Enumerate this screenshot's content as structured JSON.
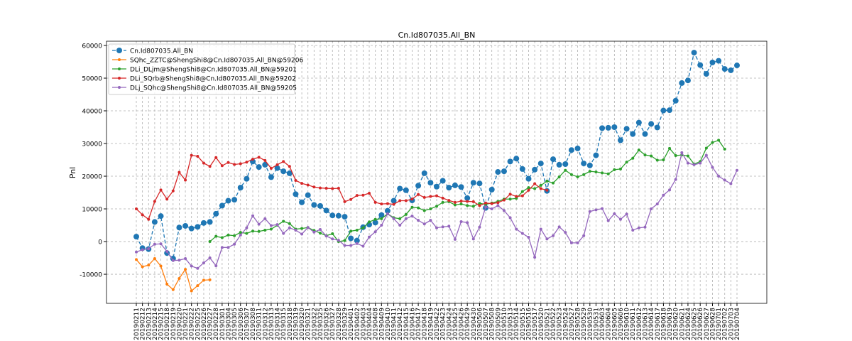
{
  "chart_data": {
    "type": "line",
    "title": "Cn.Id807035.All_BN",
    "y_label": "Pnl",
    "categories": [
      "20190211",
      "20190212",
      "20190213",
      "20190214",
      "20190215",
      "20190218",
      "20190219",
      "20190220",
      "20190221",
      "20190222",
      "20190225",
      "20190226",
      "20190227",
      "20190228",
      "20190301",
      "20190304",
      "20190305",
      "20190306",
      "20190307",
      "20190308",
      "20190311",
      "20190312",
      "20190313",
      "20190314",
      "20190315",
      "20190318",
      "20190319",
      "20190320",
      "20190321",
      "20190322",
      "20190325",
      "20190326",
      "20190327",
      "20190328",
      "20190329",
      "20190401",
      "20190402",
      "20190403",
      "20190404",
      "20190408",
      "20190409",
      "20190410",
      "20190411",
      "20190412",
      "20190415",
      "20190416",
      "20190417",
      "20190418",
      "20190419",
      "20190422",
      "20190423",
      "20190424",
      "20190425",
      "20190426",
      "20190429",
      "20190430",
      "20190506",
      "20190507",
      "20190508",
      "20190509",
      "20190510",
      "20190513",
      "20190514",
      "20190515",
      "20190516",
      "20190517",
      "20190520",
      "20190521",
      "20190522",
      "20190523",
      "20190524",
      "20190527",
      "20190528",
      "20190529",
      "20190530",
      "20190531",
      "20190603",
      "20190604",
      "20190605",
      "20190606",
      "20190610",
      "20190611",
      "20190612",
      "20190613",
      "20190614",
      "20190617",
      "20190618",
      "20190619",
      "20190620",
      "20190621",
      "20190624",
      "20190625",
      "20190626",
      "20190627",
      "20190628",
      "20190701",
      "20190702",
      "20190703",
      "20190704"
    ],
    "series": [
      {
        "name": "Cn.Id807035.All_BN",
        "color": "#1f77b4",
        "dashed": true,
        "marker_size": 4,
        "values": [
          1500,
          -2000,
          -2300,
          6000,
          7800,
          -3500,
          -5200,
          4300,
          4800,
          4000,
          4500,
          5700,
          6000,
          8500,
          11000,
          12500,
          12800,
          16500,
          19200,
          24500,
          22800,
          23500,
          19700,
          22500,
          21500,
          20900,
          14500,
          12000,
          14200,
          11200,
          10900,
          9500,
          8000,
          7900,
          7600,
          1000,
          300,
          4400,
          5200,
          5800,
          8100,
          9400,
          12500,
          16200,
          15700,
          12600,
          17100,
          20900,
          18000,
          16800,
          18600,
          16500,
          17200,
          16700,
          13300,
          18000,
          17800,
          10300,
          15900,
          21300,
          21500,
          24500,
          25400,
          22200,
          19200,
          22000,
          23900,
          15500,
          25200,
          23500,
          23700,
          28000,
          28500,
          23900,
          23300,
          26400,
          34700,
          34800,
          35000,
          31000,
          34500,
          32900,
          36400,
          32900,
          36000,
          34900,
          40100,
          40200,
          43100,
          48500,
          49300,
          57800,
          54000,
          51300,
          54800,
          55300,
          52800,
          52400,
          53900
        ]
      },
      {
        "name": "SQhc_ZZTC@ShengShi8@Cn.Id807035.All_BN@59206",
        "color": "#ff7f0e",
        "dashed": false,
        "marker_size": 2,
        "values": [
          -5500,
          -7700,
          -7200,
          -5200,
          -7500,
          -13000,
          -14700,
          -11300,
          -8500,
          -15100,
          -13500,
          -11800,
          -11700,
          null,
          null,
          null,
          null,
          null,
          null,
          null,
          null,
          null,
          null,
          null,
          null,
          null,
          null,
          null,
          null,
          null,
          null,
          null,
          null,
          null,
          null,
          null,
          null,
          null,
          null,
          null,
          null,
          null,
          null,
          null,
          null,
          null,
          null,
          null,
          null,
          null,
          null,
          null,
          null,
          null,
          null,
          null,
          null,
          null,
          null,
          null,
          null,
          null,
          null,
          null,
          null,
          null,
          null,
          null,
          null,
          null,
          null,
          null,
          null,
          null,
          null,
          null,
          null,
          null,
          null,
          null,
          null,
          null,
          null,
          null,
          null,
          null,
          null,
          null,
          null,
          null,
          null,
          null,
          null,
          null,
          null,
          null,
          null,
          null,
          null
        ]
      },
      {
        "name": "DLi_DLjm@ShengShi8@Cn.Id807035.All_BN@59201",
        "color": "#2ca02c",
        "dashed": false,
        "marker_size": 2,
        "values": [
          null,
          null,
          null,
          null,
          null,
          null,
          null,
          null,
          null,
          null,
          null,
          null,
          0,
          1600,
          1200,
          2000,
          1800,
          2800,
          2500,
          3200,
          3100,
          3500,
          3800,
          5000,
          6200,
          5500,
          3800,
          4000,
          4300,
          3400,
          2600,
          1800,
          2400,
          0,
          300,
          3200,
          3500,
          4200,
          6000,
          6800,
          7000,
          8500,
          7300,
          7000,
          8300,
          10500,
          10300,
          9500,
          10000,
          10800,
          12000,
          12200,
          11200,
          11500,
          11000,
          10800,
          11700,
          11400,
          11800,
          12300,
          13000,
          13000,
          13200,
          15300,
          16500,
          16200,
          17200,
          18500,
          17900,
          19800,
          21800,
          20500,
          19800,
          20500,
          21500,
          21300,
          21000,
          20700,
          22000,
          22200,
          24300,
          25500,
          28000,
          26500,
          26200,
          24900,
          25000,
          28500,
          26300,
          26500,
          26200,
          23700,
          24500,
          28600,
          30300,
          31000,
          28300,
          null,
          null
        ]
      },
      {
        "name": "DLi_SQrb@ShengShi8@Cn.Id807035.All_BN@59202",
        "color": "#d62728",
        "dashed": false,
        "marker_size": 2,
        "values": [
          10000,
          8200,
          6800,
          12300,
          15800,
          13000,
          15500,
          21200,
          18800,
          26400,
          26100,
          24000,
          23000,
          25700,
          23200,
          24200,
          23600,
          23800,
          24300,
          25200,
          25800,
          24800,
          22400,
          23500,
          24500,
          23000,
          18700,
          17800,
          17300,
          16700,
          16400,
          16300,
          16200,
          16300,
          12200,
          12900,
          14100,
          14200,
          14800,
          12000,
          11500,
          11600,
          11400,
          12500,
          12500,
          13000,
          14400,
          13500,
          13800,
          14000,
          13300,
          12600,
          12000,
          12400,
          12300,
          12200,
          11000,
          11800,
          11600,
          11900,
          12700,
          14500,
          13800,
          14000,
          15700,
          17700,
          16200,
          15700,
          null,
          null,
          null,
          null,
          null,
          null,
          null,
          null,
          null,
          null,
          null,
          null,
          null,
          null,
          null,
          null,
          null,
          null,
          null,
          null,
          null,
          null,
          null,
          null,
          null,
          null,
          null,
          null,
          null,
          null,
          null
        ]
      },
      {
        "name": "DLj_SQhc@ShengShi8@Cn.Id807035.All_BN@59205",
        "color": "#9467bd",
        "dashed": false,
        "marker_size": 2,
        "values": [
          -3200,
          -2500,
          -2200,
          -800,
          -700,
          -3000,
          -5800,
          -5700,
          -5200,
          -7500,
          -8200,
          -6500,
          -5000,
          -7400,
          -1800,
          -1800,
          -800,
          2000,
          4200,
          7900,
          5300,
          7000,
          4900,
          5200,
          2500,
          4200,
          3500,
          2300,
          4300,
          2900,
          3700,
          1700,
          800,
          400,
          -1200,
          -1200,
          -600,
          -1400,
          1400,
          3000,
          5000,
          8500,
          7000,
          5000,
          7000,
          7800,
          6500,
          5400,
          6500,
          4200,
          4500,
          4700,
          700,
          6100,
          5800,
          800,
          4400,
          10600,
          10000,
          11000,
          9500,
          7300,
          3800,
          2500,
          1300,
          -4800,
          3800,
          800,
          1800,
          4500,
          2800,
          -400,
          -400,
          1800,
          9200,
          9700,
          10100,
          6400,
          8500,
          6800,
          8400,
          3500,
          4200,
          4400,
          10000,
          11500,
          14200,
          15800,
          19000,
          27200,
          24000,
          23500,
          24000,
          26400,
          22700,
          20000,
          18800,
          17700,
          21800
        ]
      }
    ],
    "ylim": [
      -18900,
      61300
    ],
    "yticks": [
      -10000,
      0,
      10000,
      20000,
      30000,
      40000,
      50000,
      60000
    ],
    "grid": true,
    "legend": "upper left"
  }
}
